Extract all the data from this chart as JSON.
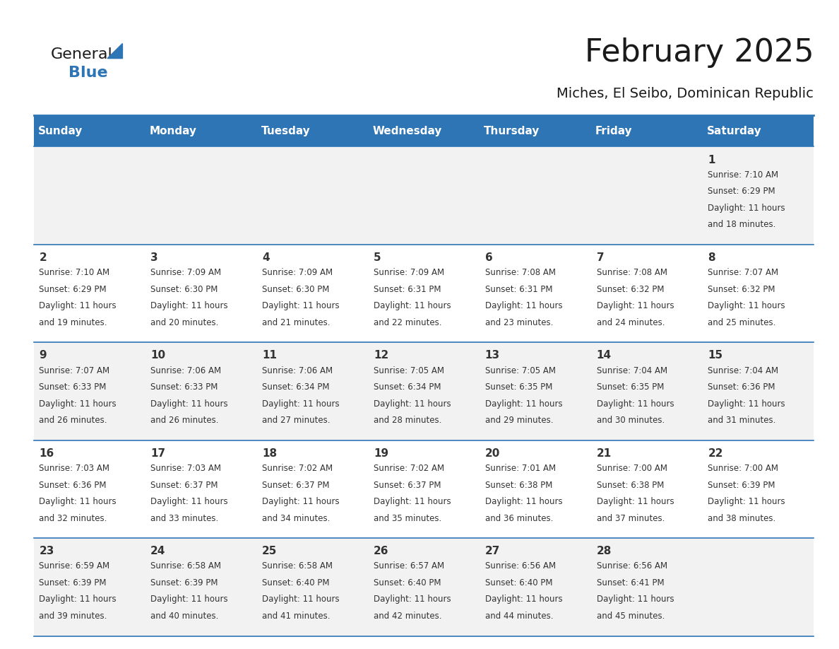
{
  "title": "February 2025",
  "subtitle": "Miches, El Seibo, Dominican Republic",
  "header_bg": "#2E75B6",
  "header_text_color": "#FFFFFF",
  "day_names": [
    "Sunday",
    "Monday",
    "Tuesday",
    "Wednesday",
    "Thursday",
    "Friday",
    "Saturday"
  ],
  "row_bg_even": "#F2F2F2",
  "row_bg_odd": "#FFFFFF",
  "cell_border_color": "#2E75B6",
  "number_color": "#333333",
  "text_color": "#333333",
  "days": [
    {
      "day": 1,
      "col": 6,
      "row": 0,
      "sunrise": "7:10 AM",
      "sunset": "6:29 PM",
      "daylight": "11 hours and 18 minutes."
    },
    {
      "day": 2,
      "col": 0,
      "row": 1,
      "sunrise": "7:10 AM",
      "sunset": "6:29 PM",
      "daylight": "11 hours and 19 minutes."
    },
    {
      "day": 3,
      "col": 1,
      "row": 1,
      "sunrise": "7:09 AM",
      "sunset": "6:30 PM",
      "daylight": "11 hours and 20 minutes."
    },
    {
      "day": 4,
      "col": 2,
      "row": 1,
      "sunrise": "7:09 AM",
      "sunset": "6:30 PM",
      "daylight": "11 hours and 21 minutes."
    },
    {
      "day": 5,
      "col": 3,
      "row": 1,
      "sunrise": "7:09 AM",
      "sunset": "6:31 PM",
      "daylight": "11 hours and 22 minutes."
    },
    {
      "day": 6,
      "col": 4,
      "row": 1,
      "sunrise": "7:08 AM",
      "sunset": "6:31 PM",
      "daylight": "11 hours and 23 minutes."
    },
    {
      "day": 7,
      "col": 5,
      "row": 1,
      "sunrise": "7:08 AM",
      "sunset": "6:32 PM",
      "daylight": "11 hours and 24 minutes."
    },
    {
      "day": 8,
      "col": 6,
      "row": 1,
      "sunrise": "7:07 AM",
      "sunset": "6:32 PM",
      "daylight": "11 hours and 25 minutes."
    },
    {
      "day": 9,
      "col": 0,
      "row": 2,
      "sunrise": "7:07 AM",
      "sunset": "6:33 PM",
      "daylight": "11 hours and 26 minutes."
    },
    {
      "day": 10,
      "col": 1,
      "row": 2,
      "sunrise": "7:06 AM",
      "sunset": "6:33 PM",
      "daylight": "11 hours and 26 minutes."
    },
    {
      "day": 11,
      "col": 2,
      "row": 2,
      "sunrise": "7:06 AM",
      "sunset": "6:34 PM",
      "daylight": "11 hours and 27 minutes."
    },
    {
      "day": 12,
      "col": 3,
      "row": 2,
      "sunrise": "7:05 AM",
      "sunset": "6:34 PM",
      "daylight": "11 hours and 28 minutes."
    },
    {
      "day": 13,
      "col": 4,
      "row": 2,
      "sunrise": "7:05 AM",
      "sunset": "6:35 PM",
      "daylight": "11 hours and 29 minutes."
    },
    {
      "day": 14,
      "col": 5,
      "row": 2,
      "sunrise": "7:04 AM",
      "sunset": "6:35 PM",
      "daylight": "11 hours and 30 minutes."
    },
    {
      "day": 15,
      "col": 6,
      "row": 2,
      "sunrise": "7:04 AM",
      "sunset": "6:36 PM",
      "daylight": "11 hours and 31 minutes."
    },
    {
      "day": 16,
      "col": 0,
      "row": 3,
      "sunrise": "7:03 AM",
      "sunset": "6:36 PM",
      "daylight": "11 hours and 32 minutes."
    },
    {
      "day": 17,
      "col": 1,
      "row": 3,
      "sunrise": "7:03 AM",
      "sunset": "6:37 PM",
      "daylight": "11 hours and 33 minutes."
    },
    {
      "day": 18,
      "col": 2,
      "row": 3,
      "sunrise": "7:02 AM",
      "sunset": "6:37 PM",
      "daylight": "11 hours and 34 minutes."
    },
    {
      "day": 19,
      "col": 3,
      "row": 3,
      "sunrise": "7:02 AM",
      "sunset": "6:37 PM",
      "daylight": "11 hours and 35 minutes."
    },
    {
      "day": 20,
      "col": 4,
      "row": 3,
      "sunrise": "7:01 AM",
      "sunset": "6:38 PM",
      "daylight": "11 hours and 36 minutes."
    },
    {
      "day": 21,
      "col": 5,
      "row": 3,
      "sunrise": "7:00 AM",
      "sunset": "6:38 PM",
      "daylight": "11 hours and 37 minutes."
    },
    {
      "day": 22,
      "col": 6,
      "row": 3,
      "sunrise": "7:00 AM",
      "sunset": "6:39 PM",
      "daylight": "11 hours and 38 minutes."
    },
    {
      "day": 23,
      "col": 0,
      "row": 4,
      "sunrise": "6:59 AM",
      "sunset": "6:39 PM",
      "daylight": "11 hours and 39 minutes."
    },
    {
      "day": 24,
      "col": 1,
      "row": 4,
      "sunrise": "6:58 AM",
      "sunset": "6:39 PM",
      "daylight": "11 hours and 40 minutes."
    },
    {
      "day": 25,
      "col": 2,
      "row": 4,
      "sunrise": "6:58 AM",
      "sunset": "6:40 PM",
      "daylight": "11 hours and 41 minutes."
    },
    {
      "day": 26,
      "col": 3,
      "row": 4,
      "sunrise": "6:57 AM",
      "sunset": "6:40 PM",
      "daylight": "11 hours and 42 minutes."
    },
    {
      "day": 27,
      "col": 4,
      "row": 4,
      "sunrise": "6:56 AM",
      "sunset": "6:40 PM",
      "daylight": "11 hours and 44 minutes."
    },
    {
      "day": 28,
      "col": 5,
      "row": 4,
      "sunrise": "6:56 AM",
      "sunset": "6:41 PM",
      "daylight": "11 hours and 45 minutes."
    }
  ],
  "num_rows": 5,
  "logo_text_general": "General",
  "logo_text_blue": "Blue",
  "logo_color_general": "#1a1a1a",
  "logo_color_blue": "#2E75B6",
  "logo_triangle_color": "#2E75B6"
}
